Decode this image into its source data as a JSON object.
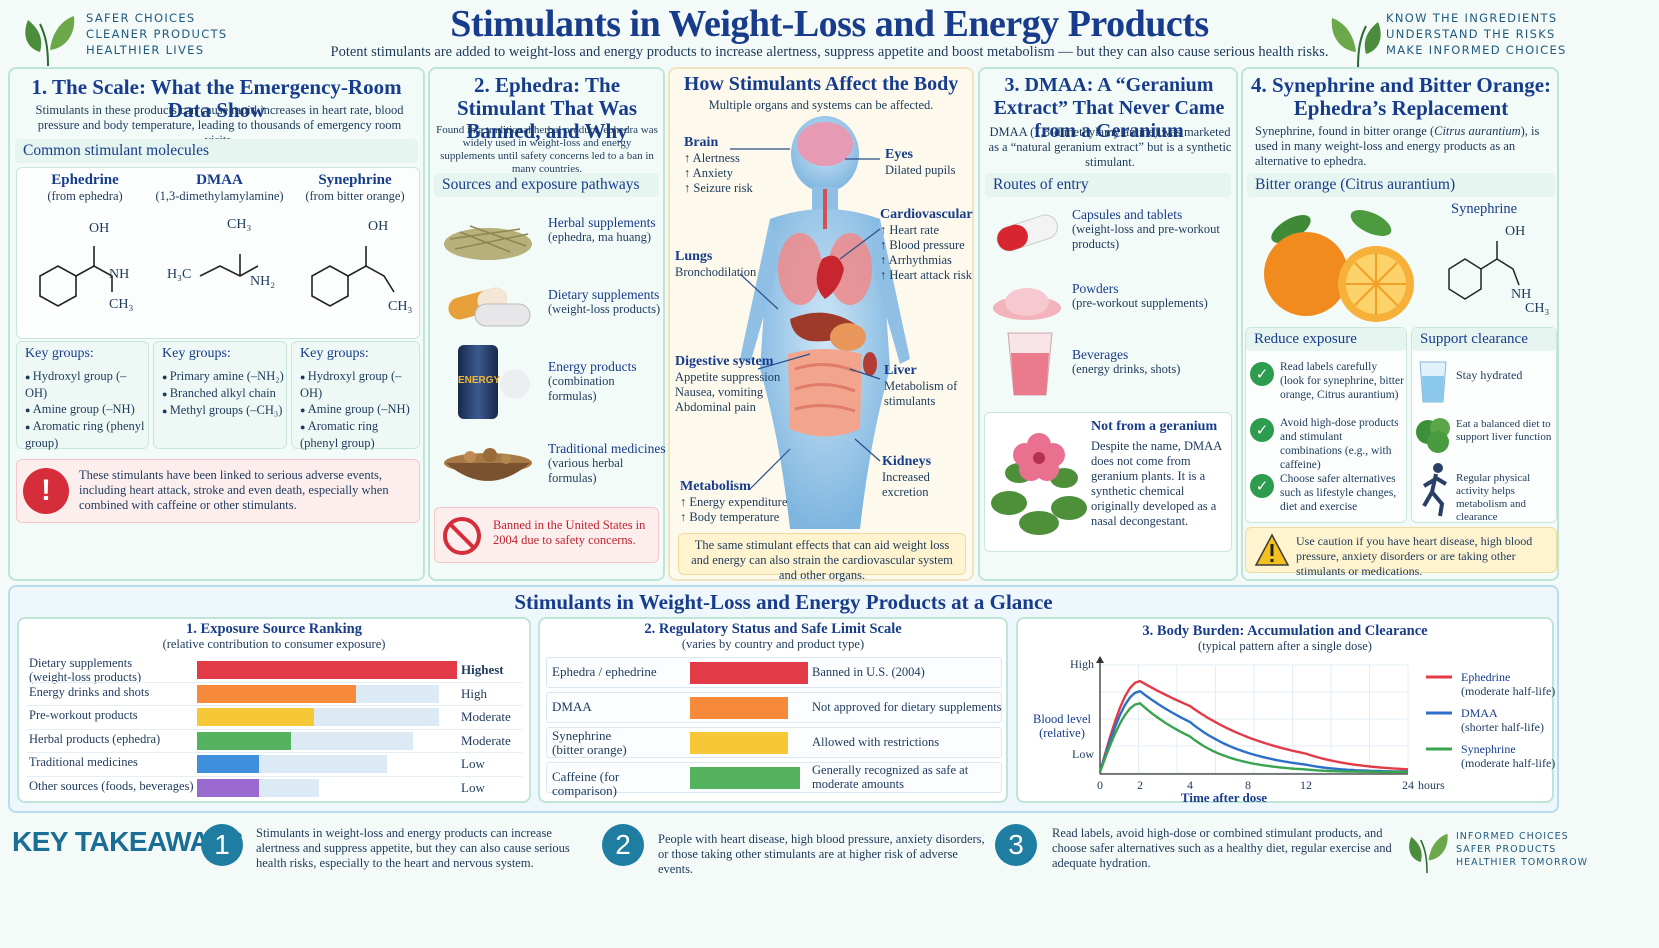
{
  "header": {
    "left_tagline": [
      "SAFER CHOICES",
      "CLEANER PRODUCTS",
      "HEALTHIER LIVES"
    ],
    "right_tagline": [
      "KNOW THE INGREDIENTS",
      "UNDERSTAND THE RISKS",
      "MAKE INFORMED CHOICES"
    ],
    "title": "Stimulants in Weight-Loss and Energy Products",
    "subtitle": "Potent stimulants are added to weight-loss and energy products to increase alertness, suppress appetite and boost metabolism — but they can also cause serious health risks."
  },
  "s1": {
    "title": "1. The Scale: What the Emergency-Room Data Show",
    "intro": "Stimulants in these products can cause rapid increases in heart rate, blood pressure and body temperature, leading to thousands of emergency room visits.",
    "molecules_heading": "Common stimulant molecules",
    "molecules": [
      {
        "name": "Ephedrine",
        "source": "(from ephedra)",
        "groups_title": "Key groups:",
        "groups": [
          "Hydroxyl group (–OH)",
          "Amine group (–NH)",
          "Aromatic ring (phenyl group)"
        ]
      },
      {
        "name": "DMAA",
        "source": "(1,3-dimethylamylamine)",
        "groups_title": "Key groups:",
        "groups": [
          "Primary amine (–NH₂)",
          "Branched alkyl chain",
          "Methyl groups (–CH₃)"
        ]
      },
      {
        "name": "Synephrine",
        "source": "(from bitter orange)",
        "groups_title": "Key groups:",
        "groups": [
          "Hydroxyl group (–OH)",
          "Amine group (–NH)",
          "Aromatic ring (phenyl group)"
        ]
      }
    ],
    "atoms": {
      "oh": "OH",
      "nh": "NH",
      "ch3": "CH₃",
      "h3c": "H₃C",
      "nh2": "NH₂"
    },
    "warning": "These stimulants have been linked to serious adverse events, including heart attack, stroke and even death, especially when combined with caffeine or other stimulants."
  },
  "s2": {
    "title": "2. Ephedra: The Stimulant That Was Banned, and Why",
    "intro": "Found in a traditional herbal product, ephedra was widely used in weight-loss and energy supplements until safety concerns led to a ban in many countries.",
    "pathways_heading": "Sources and exposure pathways",
    "pathways": [
      {
        "title": "Herbal supplements",
        "detail": "(ephedra, ma huang)"
      },
      {
        "title": "Dietary supplements",
        "detail": "(weight-loss products)"
      },
      {
        "title": "Energy products",
        "detail": "(combination formulas)"
      },
      {
        "title": "Traditional medicines",
        "detail": "(various herbal formulas)"
      }
    ],
    "can_label": "ENERGY",
    "ban": "Banned in the United States in 2004 due to safety concerns."
  },
  "body": {
    "title": "How Stimulants Affect the Body",
    "subtitle": "Multiple organs and systems can be affected.",
    "brain": {
      "title": "Brain",
      "items": [
        "↑ Alertness",
        "↑ Anxiety",
        "↑ Seizure risk"
      ]
    },
    "eyes": {
      "title": "Eyes",
      "items": [
        "Dilated pupils"
      ]
    },
    "cardio": {
      "title": "Cardiovascular",
      "items": [
        "↑ Heart rate",
        "↑ Blood pressure",
        "↑ Arrhythmias",
        "↑ Heart attack risk"
      ]
    },
    "lungs": {
      "title": "Lungs",
      "items": [
        "Bronchodilation"
      ]
    },
    "digestive": {
      "title": "Digestive system",
      "items": [
        "Appetite suppression",
        "Nausea, vomiting",
        "Abdominal pain"
      ]
    },
    "liver": {
      "title": "Liver",
      "items": [
        "Metabolism of",
        "stimulants"
      ]
    },
    "kidneys": {
      "title": "Kidneys",
      "items": [
        "Increased excretion"
      ]
    },
    "metabolism": {
      "title": "Metabolism",
      "items": [
        "↑ Energy expenditure",
        "↑ Body temperature"
      ]
    },
    "note": "The same stimulant effects that can aid weight loss and energy can also strain the cardiovascular system and other organs."
  },
  "s3": {
    "title": "3. DMAA: A “Geranium Extract” That Never Came from a Geranium",
    "intro": "DMAA (1,3-dimethylamylamine) was marketed as a “natural geranium extract” but is a synthetic stimulant.",
    "routes_heading": "Routes of entry",
    "routes": [
      {
        "title": "Capsules and tablets",
        "detail": "(weight-loss and pre-workout products)"
      },
      {
        "title": "Powders",
        "detail": "(pre-workout supplements)"
      },
      {
        "title": "Beverages",
        "detail": "(energy drinks, shots)"
      }
    ],
    "geranium_title": "Not from a geranium",
    "geranium_text": "Despite the name, DMAA does not come from geranium plants. It is a synthetic chemical originally developed as a nasal decongestant."
  },
  "s4": {
    "title": "4. Synephrine and Bitter Orange: Ephedra’s Replacement",
    "intro_a": "Synephrine, found in bitter orange (",
    "intro_species": "Citrus aurantium",
    "intro_b": "), is used in many weight-loss and energy products as an alternative to ephedra.",
    "orange_heading": "Bitter orange (Citrus aurantium)",
    "molecule_name": "Synephrine",
    "reduce_heading": "Reduce exposure",
    "reduce": [
      "Read labels carefully (look for synephrine, bitter orange, Citrus aurantium)",
      "Avoid high-dose products and stimulant combinations (e.g., with caffeine)",
      "Choose safer alternatives such as lifestyle changes, diet and exercise"
    ],
    "support_heading": "Support clearance",
    "support": [
      "Stay hydrated",
      "Eat a balanced diet to support liver function",
      "Regular physical activity helps metabolism and clearance"
    ],
    "caution": "Use caution if you have heart disease, high blood pressure, anxiety disorders or are taking other stimulants or medications."
  },
  "glance": {
    "title": "Stimulants in Weight-Loss and Energy Products at a Glance"
  },
  "chart_data": [
    {
      "type": "bar",
      "title": "1. Exposure Source Ranking",
      "subtitle": "(relative contribution to consumer exposure)",
      "categories": [
        "Dietary supplements (weight-loss products)",
        "Energy drinks and shots",
        "Pre-workout products",
        "Herbal products (ephedra)",
        "Traditional medicines",
        "Other sources (foods, beverages)"
      ],
      "levels": [
        "Highest",
        "High",
        "Moderate",
        "Moderate",
        "Low",
        "Low"
      ],
      "values": [
        100,
        61,
        45,
        36,
        24,
        24
      ],
      "backgrounds": [
        100,
        93,
        93,
        83,
        73,
        47
      ],
      "colors": [
        "#e23b47",
        "#f7893a",
        "#f6c736",
        "#55b360",
        "#3f8fdc",
        "#9b6ad1"
      ]
    },
    {
      "type": "table",
      "title": "2. Regulatory Status and Safe Limit Scale",
      "subtitle": "(varies by country and product type)",
      "rows": [
        {
          "name": "Ephedra / ephedrine",
          "status": "Banned in U.S. (2004)",
          "color": "#e23b47"
        },
        {
          "name": "DMAA",
          "status": "Not approved for dietary supplements",
          "color": "#f7893a"
        },
        {
          "name": "Synephrine (bitter orange)",
          "status": "Allowed with restrictions",
          "color": "#f6c736"
        },
        {
          "name": "Caffeine (for comparison)",
          "status": "Generally recognized as safe at moderate amounts",
          "color": "#55b360"
        }
      ]
    },
    {
      "type": "line",
      "title": "3. Body Burden: Accumulation and Clearance",
      "subtitle": "(typical pattern after a single dose)",
      "ylabel": "Blood level (relative)",
      "xlabel": "Time after dose",
      "x_unit": "hours",
      "y_ticks": [
        "High",
        "Low"
      ],
      "x_ticks": [
        0,
        2,
        4,
        8,
        12,
        24
      ],
      "series": [
        {
          "name": "Ephedrine",
          "note": "(moderate half-life)",
          "color": "#e23b47",
          "peak": 0.9,
          "shape": "slow"
        },
        {
          "name": "DMAA",
          "note": "(shorter half-life)",
          "color": "#2c6fc9",
          "peak": 0.8,
          "shape": "mid"
        },
        {
          "name": "Synephrine",
          "note": "(moderate half-life)",
          "color": "#3aa350",
          "peak": 0.68,
          "shape": "fast"
        }
      ]
    }
  ],
  "takeaways": {
    "title": "KEY TAKEAWAYS",
    "items": [
      {
        "n": "1",
        "text": "Stimulants in weight-loss and energy products can increase alertness and suppress appetite, but they can also cause serious health risks, especially to the heart and nervous system."
      },
      {
        "n": "2",
        "text": "People with heart disease, high blood pressure, anxiety disorders, or those taking other stimulants are at higher risk of adverse events."
      },
      {
        "n": "3",
        "text": "Read labels, avoid high-dose or combined stimulant products, and choose safer alternatives such as a healthy diet, regular exercise and adequate hydration."
      }
    ],
    "footer_tagline": [
      "INFORMED CHOICES",
      "SAFER PRODUCTS",
      "HEALTHIER TOMORROW"
    ]
  }
}
